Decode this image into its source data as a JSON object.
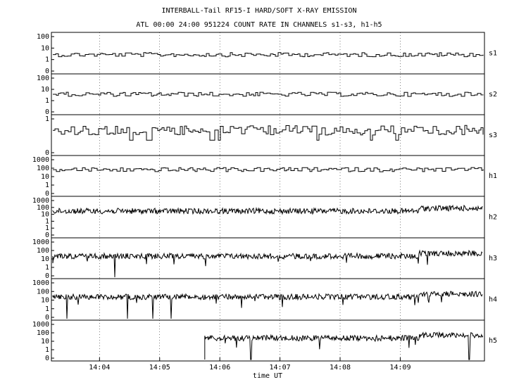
{
  "title": "INTERBALL-Tail RF15-I HARD/SOFT X-RAY EMISSION",
  "subtitle": "ATL 00:00 24:00 951224  COUNT RATE IN CHANNELS s1-s3, h1-h5",
  "chart_data": {
    "type": "line",
    "title": "INTERBALL-Tail RF15-I HARD/SOFT X-RAY EMISSION",
    "subtitle": "ATL 00:00 24:00 951224  COUNT RATE IN CHANNELS s1-s3, h1-h5",
    "xlabel": "time UT",
    "x_ticks": [
      "14:04",
      "14:05",
      "14:06",
      "14:07",
      "14:08",
      "14:09"
    ],
    "x_range_minutes": [
      843.2,
      850.4
    ],
    "x_tick_minutes": [
      844,
      845,
      846,
      847,
      848,
      849
    ],
    "yscale": "log",
    "grid": true,
    "panels": [
      {
        "name": "s1",
        "yticks": [
          "100",
          "10",
          "1",
          "0"
        ],
        "ylim": [
          0,
          100
        ],
        "typical_level": 8,
        "style": "step"
      },
      {
        "name": "s2",
        "yticks": [
          "100",
          "10",
          "1",
          "0"
        ],
        "ylim": [
          0,
          100
        ],
        "typical_level": 10,
        "style": "step"
      },
      {
        "name": "s3",
        "yticks": [
          "1",
          "0"
        ],
        "ylim": [
          0,
          3
        ],
        "typical_level": 1.5,
        "style": "step"
      },
      {
        "name": "h1",
        "yticks": [
          "1000",
          "100",
          "10",
          "1",
          "0"
        ],
        "ylim": [
          0,
          1000
        ],
        "typical_level": 130,
        "style": "step"
      },
      {
        "name": "h2",
        "yticks": [
          "1000",
          "100",
          "10",
          "1",
          "1",
          "0"
        ],
        "ylim": [
          0,
          1000
        ],
        "typical_level": 120,
        "style": "noisy"
      },
      {
        "name": "h3",
        "yticks": [
          "1000",
          "100",
          "10",
          "1",
          "0"
        ],
        "ylim": [
          0,
          1000
        ],
        "typical_level": 55,
        "style": "noisy"
      },
      {
        "name": "h4",
        "yticks": [
          "1000",
          "100",
          "10",
          "1",
          "0"
        ],
        "ylim": [
          0,
          1000
        ],
        "typical_level": 60,
        "style": "noisy"
      },
      {
        "name": "h5",
        "yticks": [
          "1000",
          "100",
          "10",
          "1",
          "0"
        ],
        "ylim": [
          0,
          1000
        ],
        "typical_level": 60,
        "style": "noisy",
        "start_minute": 845.75
      }
    ]
  }
}
